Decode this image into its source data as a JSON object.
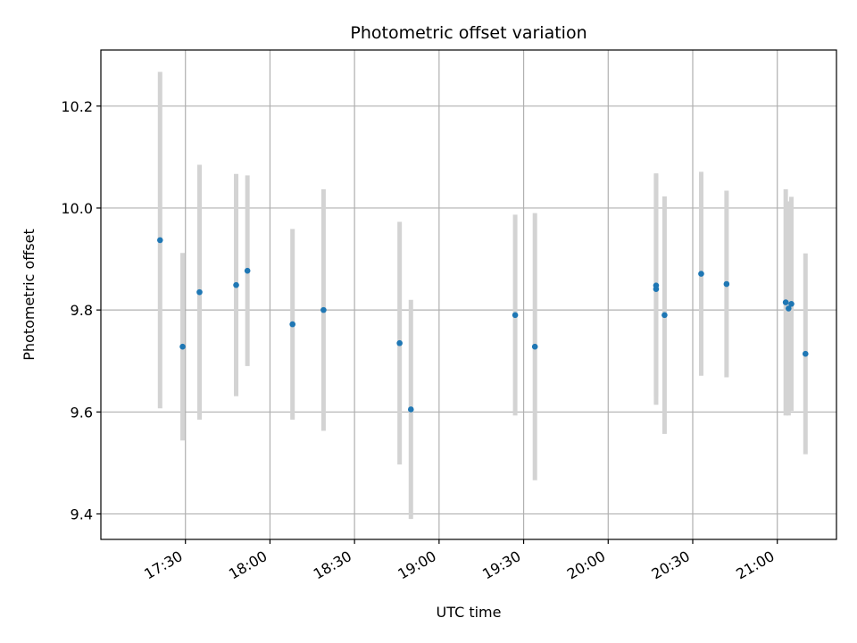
{
  "chart_data": {
    "type": "scatter",
    "title": "Photometric offset variation",
    "xlabel": "UTC time",
    "ylabel": "Photometric offset",
    "x_is_time": true,
    "xlim": [
      "17:00",
      "21:21"
    ],
    "ylim": [
      9.35,
      10.31
    ],
    "x_ticks": [
      "17:30",
      "18:00",
      "18:30",
      "19:00",
      "19:30",
      "20:00",
      "20:30",
      "21:00"
    ],
    "y_ticks": [
      9.4,
      9.6,
      9.8,
      10.0,
      10.2
    ],
    "y_tick_labels": [
      "9.4",
      "9.6",
      "9.8",
      "10.0",
      "10.2"
    ],
    "grid": true,
    "marker_color": "#1f77b4",
    "errorbar_color": "#d3d3d3",
    "points": [
      {
        "x": "17:21",
        "y": 9.937,
        "err": 0.33
      },
      {
        "x": "17:29",
        "y": 9.728,
        "err": 0.184
      },
      {
        "x": "17:35",
        "y": 9.835,
        "err": 0.25
      },
      {
        "x": "17:48",
        "y": 9.849,
        "err": 0.218
      },
      {
        "x": "17:52",
        "y": 9.877,
        "err": 0.187
      },
      {
        "x": "18:08",
        "y": 9.772,
        "err": 0.187
      },
      {
        "x": "18:19",
        "y": 9.8,
        "err": 0.237
      },
      {
        "x": "18:46",
        "y": 9.735,
        "err": 0.238
      },
      {
        "x": "18:50",
        "y": 9.605,
        "err": 0.215
      },
      {
        "x": "19:27",
        "y": 9.79,
        "err": 0.197
      },
      {
        "x": "19:34",
        "y": 9.728,
        "err": 0.262
      },
      {
        "x": "20:17",
        "y": 9.841,
        "err": 0.227
      },
      {
        "x": "20:17",
        "y": 9.848,
        "err": 0.218
      },
      {
        "x": "20:20",
        "y": 9.79,
        "err": 0.233
      },
      {
        "x": "20:33",
        "y": 9.871,
        "err": 0.2
      },
      {
        "x": "20:42",
        "y": 9.851,
        "err": 0.183
      },
      {
        "x": "21:03",
        "y": 9.815,
        "err": 0.222
      },
      {
        "x": "21:04",
        "y": 9.803,
        "err": 0.21
      },
      {
        "x": "21:05",
        "y": 9.812,
        "err": 0.21
      },
      {
        "x": "21:10",
        "y": 9.714,
        "err": 0.197
      }
    ]
  }
}
